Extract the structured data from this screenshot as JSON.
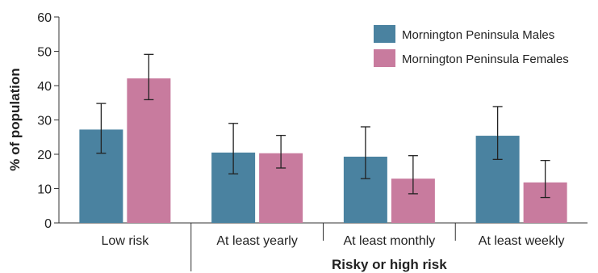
{
  "chart_data": {
    "type": "bar",
    "title": "",
    "ylabel": "% of population",
    "xlabel": "",
    "group_label": "Risky or high risk",
    "ylim": [
      0,
      60
    ],
    "yticks": [
      "0",
      "10",
      "20",
      "30",
      "40",
      "50",
      "60"
    ],
    "categories": [
      "Low risk",
      "At least yearly",
      "At least monthly",
      "At least weekly"
    ],
    "legend_position": "top-right",
    "grid": false,
    "series": [
      {
        "name": "Mornington Peninsula Males",
        "color": "#4a82a0",
        "values": [
          27.2,
          20.5,
          19.3,
          25.4
        ],
        "error_low": [
          20.3,
          14.3,
          12.9,
          18.5
        ],
        "error_high": [
          34.8,
          29.0,
          28.0,
          33.9
        ]
      },
      {
        "name": "Mornington Peninsula Females",
        "color": "#c87b9e",
        "values": [
          42.1,
          20.3,
          12.9,
          11.8
        ],
        "error_low": [
          35.9,
          16.0,
          8.5,
          7.4
        ],
        "error_high": [
          49.1,
          25.5,
          19.6,
          18.2
        ]
      }
    ]
  }
}
